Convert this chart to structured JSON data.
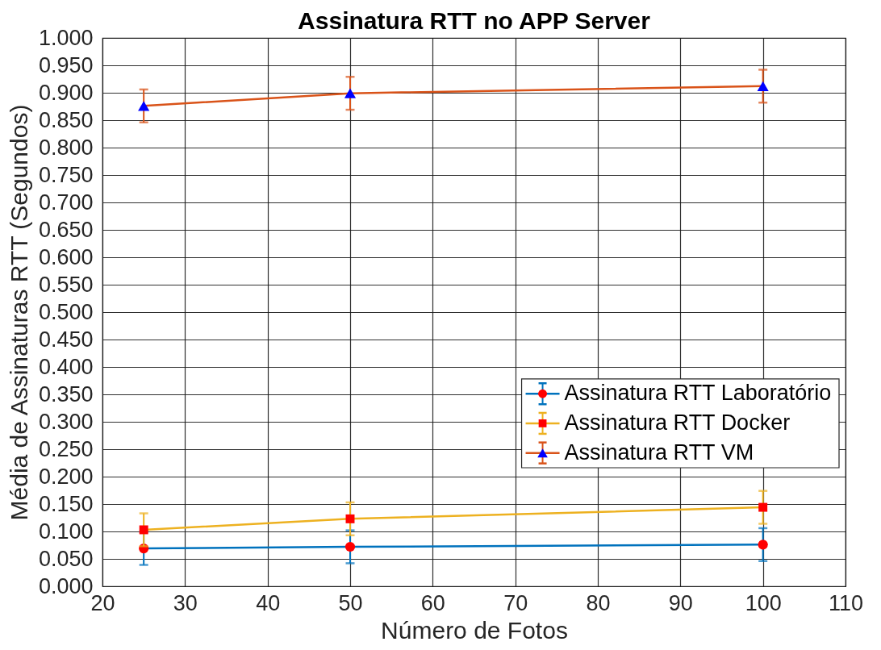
{
  "chart_data": {
    "type": "line",
    "title": "Assinatura RTT no APP Server",
    "xlabel": "Número de Fotos",
    "ylabel": "Média de Assinaturas RTT (Segundos)",
    "x": [
      25,
      50,
      100
    ],
    "series": [
      {
        "name": "Assinatura RTT Laboratório",
        "color": "#0072bd",
        "colors": [
          "#ff0000",
          "#ff0000",
          "#ff0000"
        ],
        "marker": "circle",
        "values": [
          0.069,
          0.072,
          0.076
        ],
        "errors": [
          0.03,
          0.03,
          0.03
        ]
      },
      {
        "name": "Assinatura RTT Docker",
        "color": "#edb120",
        "colors": [
          "#ff0000",
          "#ff0000",
          "#ff0000"
        ],
        "marker": "square",
        "values": [
          0.103,
          0.123,
          0.144
        ],
        "errors": [
          0.03,
          0.03,
          0.03
        ]
      },
      {
        "name": "Assinatura RTT VM",
        "color": "#d95319",
        "colors": [
          "#0000ff",
          "#0000ff",
          "#0000ff"
        ],
        "marker": "triangle",
        "values": [
          0.876,
          0.899,
          0.912
        ],
        "errors": [
          0.03,
          0.03,
          0.03
        ]
      }
    ],
    "xlim": [
      20,
      110
    ],
    "xticks": [
      20,
      30,
      40,
      50,
      60,
      70,
      80,
      90,
      100,
      110
    ],
    "ylim": [
      0,
      1
    ],
    "yticks": [
      {
        "value": 0,
        "label": "0.000"
      },
      {
        "value": 0.05,
        "label": "0.050"
      },
      {
        "value": 0.1,
        "label": "0.100"
      },
      {
        "value": 0.15,
        "label": "0.150"
      },
      {
        "value": 0.2,
        "label": "0.200"
      },
      {
        "value": 0.25,
        "label": "0.250"
      },
      {
        "value": 0.3,
        "label": "0.300"
      },
      {
        "value": 0.35,
        "label": "0.350"
      },
      {
        "value": 0.4,
        "label": "0.400"
      },
      {
        "value": 0.45,
        "label": "0.450"
      },
      {
        "value": 0.5,
        "label": "0.500"
      },
      {
        "value": 0.55,
        "label": "0.550"
      },
      {
        "value": 0.6,
        "label": "0.600"
      },
      {
        "value": 0.65,
        "label": "0.650"
      },
      {
        "value": 0.7,
        "label": "0.700"
      },
      {
        "value": 0.75,
        "label": "0.750"
      },
      {
        "value": 0.8,
        "label": "0.800"
      },
      {
        "value": 0.85,
        "label": "0.850"
      },
      {
        "value": 0.9,
        "label": "0.900"
      },
      {
        "value": 0.95,
        "label": "0.950"
      },
      {
        "value": 1,
        "label": "1.000"
      }
    ],
    "grid": true,
    "legend": "bottom right",
    "line_style": "solid"
  }
}
